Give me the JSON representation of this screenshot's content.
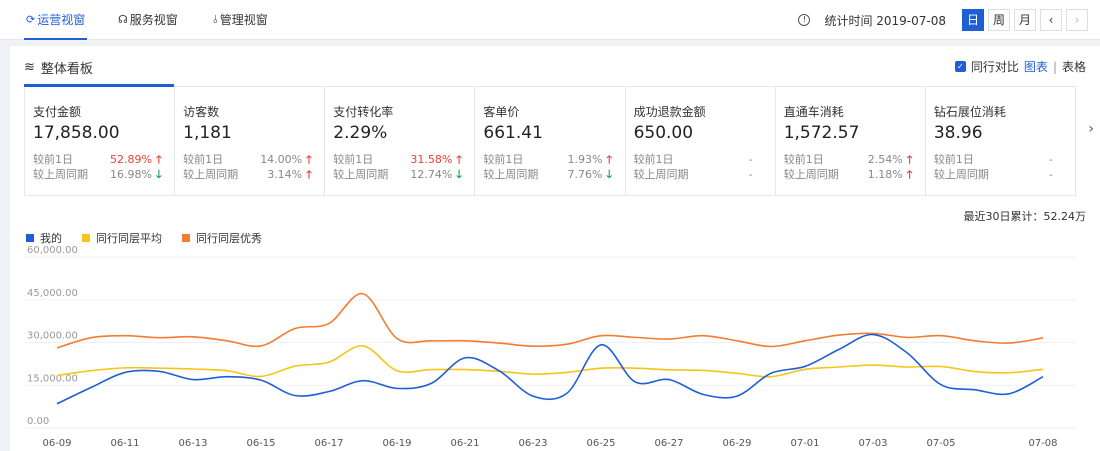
{
  "nav": {
    "tabs": [
      {
        "label": "运营视窗",
        "icon": "refresh-icon"
      },
      {
        "label": "服务视窗",
        "icon": "headset-icon"
      },
      {
        "label": "管理视窗",
        "icon": "tool-icon"
      }
    ],
    "stat_label": "统计时间 2019-07-08",
    "periods": [
      "日",
      "周",
      "月"
    ],
    "prev": "‹",
    "next": "›"
  },
  "panel": {
    "title": "整体看板",
    "compare_label": "同行对比",
    "view_chart": "图表",
    "view_sep": "|",
    "view_table": "表格",
    "total": "最近30日累计：52.24万"
  },
  "cards": [
    {
      "name": "支付金额",
      "value": "17,858.00",
      "r1_label": "较前1日",
      "r1": "52.89%",
      "r1_dir": "up",
      "r2_label": "较上周同期",
      "r2": "16.98%",
      "r2_dir": "down"
    },
    {
      "name": "访客数",
      "value": "1,181",
      "r1_label": "较前1日",
      "r1": "14.00%",
      "r1_dir": "up",
      "r2_label": "较上周同期",
      "r2": "3.14%",
      "r2_dir": "up"
    },
    {
      "name": "支付转化率",
      "value": "2.29%",
      "r1_label": "较前1日",
      "r1": "31.58%",
      "r1_dir": "up",
      "r2_label": "较上周同期",
      "r2": "12.74%",
      "r2_dir": "down"
    },
    {
      "name": "客单价",
      "value": "661.41",
      "r1_label": "较前1日",
      "r1": "1.93%",
      "r1_dir": "up",
      "r2_label": "较上周同期",
      "r2": "7.76%",
      "r2_dir": "down"
    },
    {
      "name": "成功退款金额",
      "value": "650.00",
      "r1_label": "较前1日",
      "r1": "-",
      "r1_dir": "",
      "r2_label": "较上周同期",
      "r2": "-",
      "r2_dir": ""
    },
    {
      "name": "直通车消耗",
      "value": "1,572.57",
      "r1_label": "较前1日",
      "r1": "2.54%",
      "r1_dir": "up",
      "r2_label": "较上周同期",
      "r2": "1.18%",
      "r2_dir": "up"
    },
    {
      "name": "钻石展位消耗",
      "value": "38.96",
      "r1_label": "较前1日",
      "r1": "-",
      "r1_dir": "",
      "r2_label": "较上周同期",
      "r2": "-",
      "r2_dir": ""
    }
  ],
  "chart_data": {
    "type": "line",
    "x": [
      "06-09",
      "06-10",
      "06-11",
      "06-12",
      "06-13",
      "06-14",
      "06-15",
      "06-16",
      "06-17",
      "06-18",
      "06-19",
      "06-20",
      "06-21",
      "06-22",
      "06-23",
      "06-24",
      "06-25",
      "06-26",
      "06-27",
      "06-28",
      "06-29",
      "06-30",
      "07-01",
      "07-02",
      "07-03",
      "07-04",
      "07-05",
      "07-06",
      "07-07",
      "07-08"
    ],
    "x_tick_labels": [
      "06-09",
      "06-11",
      "06-13",
      "06-15",
      "06-17",
      "06-19",
      "06-21",
      "06-23",
      "06-25",
      "06-27",
      "06-29",
      "07-01",
      "07-03",
      "07-05",
      "07-08"
    ],
    "y_tick_labels": [
      "0.00",
      "15,000.00",
      "30,000.00",
      "45,000.00",
      "60,000.00"
    ],
    "ylim": [
      0,
      60000
    ],
    "grid": true,
    "legend": "top-left",
    "series": [
      {
        "name": "我的",
        "color": "#1f5fd6",
        "values": [
          8500,
          14200,
          19500,
          19900,
          17000,
          18000,
          16800,
          11400,
          12800,
          16600,
          13900,
          15600,
          24600,
          20100,
          11200,
          12200,
          29200,
          16200,
          17000,
          11800,
          11200,
          19200,
          21600,
          27600,
          32800,
          26400,
          15200,
          13400,
          12000,
          18000
        ]
      },
      {
        "name": "同行同层平均",
        "color": "#f5c518",
        "values": [
          18400,
          20100,
          21100,
          21000,
          20700,
          20100,
          18100,
          21700,
          23100,
          28800,
          20100,
          20500,
          20500,
          19900,
          18900,
          19500,
          21000,
          21000,
          20400,
          20200,
          19200,
          18000,
          20600,
          21400,
          22100,
          21400,
          21600,
          19800,
          19400,
          20600
        ]
      },
      {
        "name": "同行同层优秀",
        "color": "#f47c30",
        "values": [
          28100,
          31700,
          32400,
          31700,
          32000,
          30600,
          28800,
          34900,
          36700,
          47100,
          31400,
          30600,
          30600,
          29800,
          28700,
          29400,
          32400,
          31800,
          31200,
          32400,
          30600,
          28600,
          30600,
          32600,
          33200,
          31800,
          32400,
          30600,
          29800,
          31600
        ]
      }
    ]
  }
}
